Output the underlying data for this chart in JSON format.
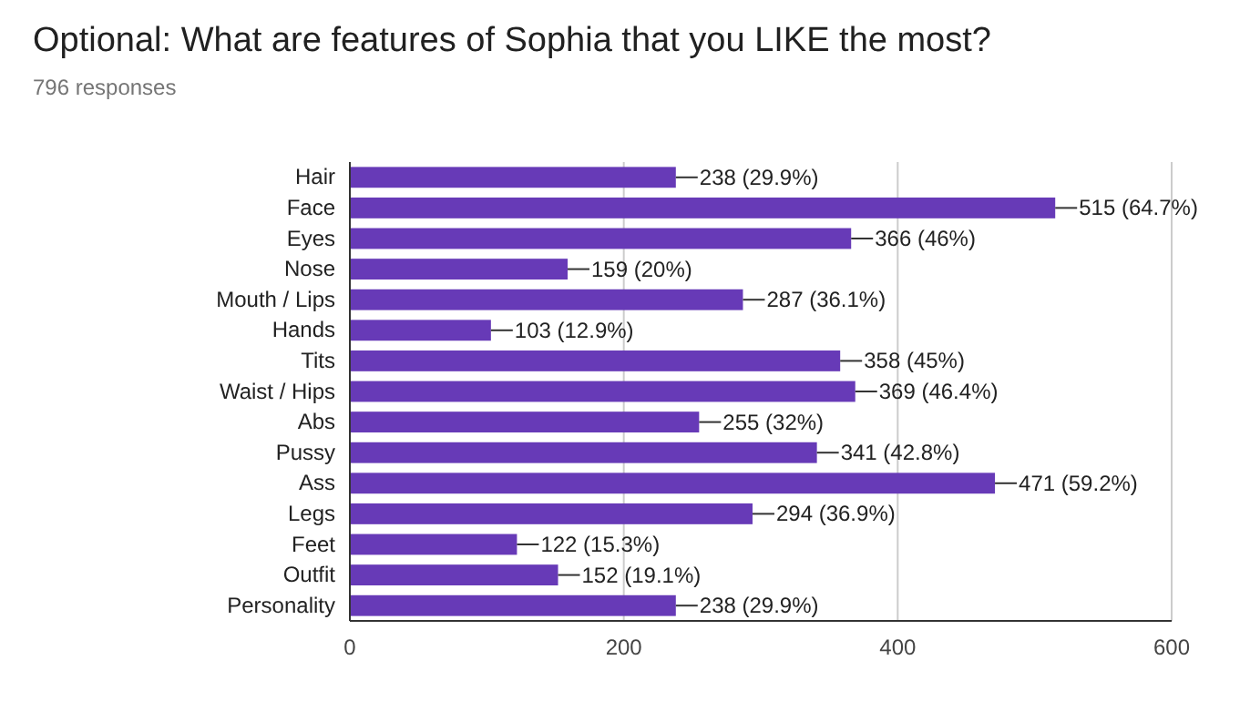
{
  "chart_data": {
    "type": "bar",
    "orientation": "horizontal",
    "title": "Optional: What are features of Sophia that you LIKE the most?",
    "subtitle": "796 responses",
    "categories": [
      "Hair",
      "Face",
      "Eyes",
      "Nose",
      "Mouth / Lips",
      "Hands",
      "Tits",
      "Waist / Hips",
      "Abs",
      "Pussy",
      "Ass",
      "Legs",
      "Feet",
      "Outfit",
      "Personality"
    ],
    "values": [
      238,
      515,
      366,
      159,
      287,
      103,
      358,
      369,
      255,
      341,
      471,
      294,
      122,
      152,
      238
    ],
    "value_labels": [
      "238 (29.9%)",
      "515 (64.7%)",
      "366 (46%)",
      "159 (20%)",
      "287 (36.1%)",
      "103 (12.9%)",
      "358 (45%)",
      "369 (46.4%)",
      "255 (32%)",
      "341 (42.8%)",
      "471 (59.2%)",
      "294 (36.9%)",
      "122 (15.3%)",
      "152 (19.1%)",
      "238 (29.9%)"
    ],
    "color": "#673ab7",
    "xlim": [
      0,
      600
    ],
    "xticks": [
      0,
      200,
      400,
      600
    ],
    "grid": "x"
  }
}
